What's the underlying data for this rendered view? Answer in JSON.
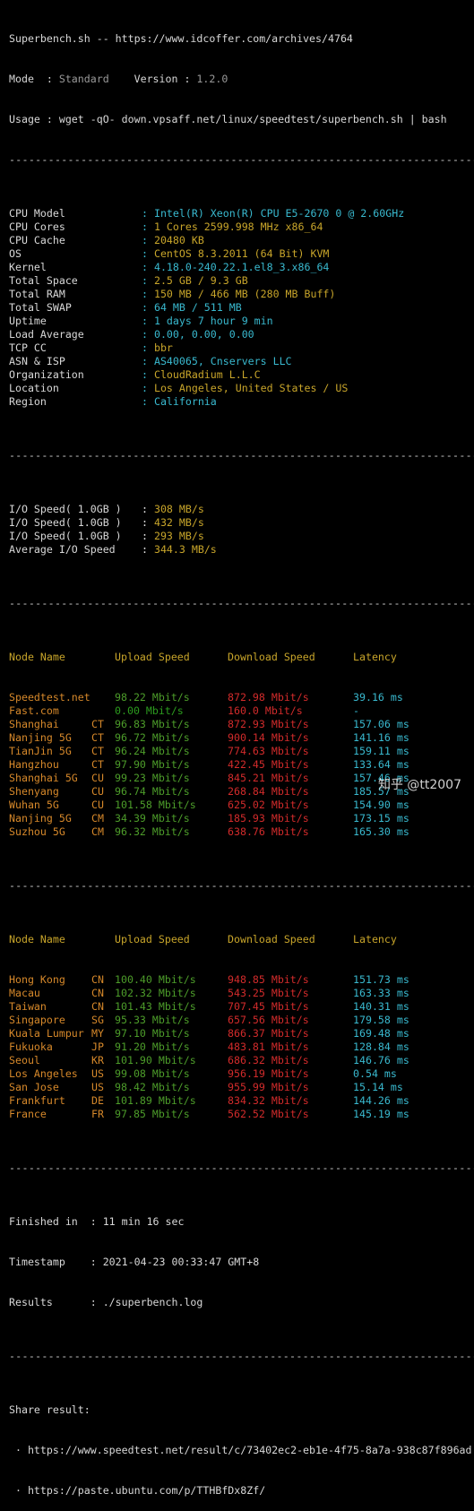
{
  "header": {
    "line1": "Superbench.sh -- https://www.idcoffer.com/archives/4764",
    "mode_label": "Mode  : ",
    "mode_value": "Standard",
    "version_label": "    Version : ",
    "version_value": "1.2.0",
    "usage": "Usage : wget -qO- down.vpsaff.net/linux/speedtest/superbench.sh | bash"
  },
  "separator": "------------------------------------------------------------------------",
  "sysinfo": [
    {
      "key": "CPU Model",
      "value": "Intel(R) Xeon(R) CPU E5-2670 0 @ 2.60GHz",
      "color": "cyan"
    },
    {
      "key": "CPU Cores",
      "value": "1 Cores 2599.998 MHz x86_64",
      "color": "yellow"
    },
    {
      "key": "CPU Cache",
      "value": "20480 KB",
      "color": "yellow"
    },
    {
      "key": "OS",
      "value": "CentOS 8.3.2011 (64 Bit) KVM",
      "color": "yellow"
    },
    {
      "key": "Kernel",
      "value": "4.18.0-240.22.1.el8_3.x86_64",
      "color": "cyan"
    },
    {
      "key": "Total Space",
      "value": "2.5 GB / 9.3 GB",
      "color": "yellow"
    },
    {
      "key": "Total RAM",
      "value": "150 MB / 466 MB (280 MB Buff)",
      "color": "yellow"
    },
    {
      "key": "Total SWAP",
      "value": "64 MB / 511 MB",
      "color": "cyan"
    },
    {
      "key": "Uptime",
      "value": "1 days 7 hour 9 min",
      "color": "cyan"
    },
    {
      "key": "Load Average",
      "value": "0.00, 0.00, 0.00",
      "color": "cyan"
    },
    {
      "key": "TCP CC",
      "value": "bbr",
      "color": "yellow"
    },
    {
      "key": "ASN & ISP",
      "value": "AS40065, Cnservers LLC",
      "color": "cyan"
    },
    {
      "key": "Organization",
      "value": "CloudRadium L.L.C",
      "color": "yellow"
    },
    {
      "key": "Location",
      "value": "Los Angeles, United States / US",
      "color": "yellow"
    },
    {
      "key": "Region",
      "value": "California",
      "color": "cyan"
    }
  ],
  "io": [
    {
      "key": "I/O Speed( 1.0GB )",
      "value": "308 MB/s"
    },
    {
      "key": "I/O Speed( 1.0GB )",
      "value": "432 MB/s"
    },
    {
      "key": "I/O Speed( 1.0GB )",
      "value": "293 MB/s"
    },
    {
      "key": "Average I/O Speed",
      "value": "344.3 MB/s"
    }
  ],
  "table_headers": {
    "node": "Node Name",
    "upload": "Upload Speed",
    "download": "Download Speed",
    "latency": "Latency"
  },
  "cn_nodes": [
    {
      "name": "Speedtest.net",
      "cc": "",
      "up": "98.22 Mbit/s",
      "down": "872.98 Mbit/s",
      "lat": "39.16 ms",
      "up_color": "dgreen"
    },
    {
      "name": "Fast.com",
      "cc": "",
      "up": "0.00 Mbit/s",
      "down": "160.0 Mbit/s",
      "lat": "-",
      "up_color": "green"
    },
    {
      "name": "Shanghai",
      "cc": "CT",
      "up": "96.83 Mbit/s",
      "down": "872.93 Mbit/s",
      "lat": "157.06 ms",
      "up_color": "dgreen"
    },
    {
      "name": "Nanjing 5G",
      "cc": "CT",
      "up": "96.72 Mbit/s",
      "down": "900.14 Mbit/s",
      "lat": "141.16 ms",
      "up_color": "dgreen"
    },
    {
      "name": "TianJin 5G",
      "cc": "CT",
      "up": "96.24 Mbit/s",
      "down": "774.63 Mbit/s",
      "lat": "159.11 ms",
      "up_color": "dgreen"
    },
    {
      "name": "Hangzhou",
      "cc": "CT",
      "up": "97.90 Mbit/s",
      "down": "422.45 Mbit/s",
      "lat": "133.64 ms",
      "up_color": "dgreen"
    },
    {
      "name": "Shanghai 5G",
      "cc": "CU",
      "up": "99.23 Mbit/s",
      "down": "845.21 Mbit/s",
      "lat": "157.46 ms",
      "up_color": "dgreen"
    },
    {
      "name": "Shenyang",
      "cc": "CU",
      "up": "96.74 Mbit/s",
      "down": "268.84 Mbit/s",
      "lat": "185.57 ms",
      "up_color": "dgreen"
    },
    {
      "name": "Wuhan 5G",
      "cc": "CU",
      "up": "101.58 Mbit/s",
      "down": "625.02 Mbit/s",
      "lat": "154.90 ms",
      "up_color": "dgreen"
    },
    {
      "name": "Nanjing 5G",
      "cc": "CM",
      "up": "34.39 Mbit/s",
      "down": "185.93 Mbit/s",
      "lat": "173.15 ms",
      "up_color": "dgreen"
    },
    {
      "name": "Suzhou 5G",
      "cc": "CM",
      "up": "96.32 Mbit/s",
      "down": "638.76 Mbit/s",
      "lat": "165.30 ms",
      "up_color": "dgreen"
    }
  ],
  "intl_nodes": [
    {
      "name": "Hong Kong",
      "cc": "CN",
      "up": "100.40 Mbit/s",
      "down": "948.85 Mbit/s",
      "lat": "151.73 ms"
    },
    {
      "name": "Macau",
      "cc": "CN",
      "up": "102.32 Mbit/s",
      "down": "543.25 Mbit/s",
      "lat": "163.33 ms"
    },
    {
      "name": "Taiwan",
      "cc": "CN",
      "up": "101.43 Mbit/s",
      "down": "707.45 Mbit/s",
      "lat": "140.31 ms"
    },
    {
      "name": "Singapore",
      "cc": "SG",
      "up": "95.33 Mbit/s",
      "down": "657.56 Mbit/s",
      "lat": "179.58 ms"
    },
    {
      "name": "Kuala Lumpur",
      "cc": "MY",
      "up": "97.10 Mbit/s",
      "down": "866.37 Mbit/s",
      "lat": "169.48 ms"
    },
    {
      "name": "Fukuoka",
      "cc": "JP",
      "up": "91.20 Mbit/s",
      "down": "483.81 Mbit/s",
      "lat": "128.84 ms"
    },
    {
      "name": "Seoul",
      "cc": "KR",
      "up": "101.90 Mbit/s",
      "down": "686.32 Mbit/s",
      "lat": "146.76 ms"
    },
    {
      "name": "Los Angeles",
      "cc": "US",
      "up": "99.08 Mbit/s",
      "down": "956.19 Mbit/s",
      "lat": "0.54 ms"
    },
    {
      "name": "San Jose",
      "cc": "US",
      "up": "98.42 Mbit/s",
      "down": "955.99 Mbit/s",
      "lat": "15.14 ms"
    },
    {
      "name": "Frankfurt",
      "cc": "DE",
      "up": "101.89 Mbit/s",
      "down": "834.32 Mbit/s",
      "lat": "144.26 ms"
    },
    {
      "name": "France",
      "cc": "FR",
      "up": "97.85 Mbit/s",
      "down": "562.52 Mbit/s",
      "lat": "145.19 ms"
    }
  ],
  "summary": {
    "finished_label": "Finished in  : ",
    "finished_value": "11 min 16 sec",
    "timestamp_label": "Timestamp    : ",
    "timestamp_value": "2021-04-23 00:33:47 GMT+8",
    "results_label": "Results      : ",
    "results_value": "./superbench.log"
  },
  "share": {
    "label": "Share result:",
    "link1": " · https://www.speedtest.net/result/c/73402ec2-eb1e-4f75-8a7a-938c87f896ad",
    "link2": " · https://paste.ubuntu.com/p/TTHBfDx8Zf/"
  },
  "watermark": "知乎 @tt2007",
  "colors": {
    "background": "#000000",
    "text": "#d8d8d8",
    "cyan": "#39b9cf",
    "green": "#2c9c1e",
    "red": "#d22b2b",
    "yellow": "#c8a52a"
  }
}
